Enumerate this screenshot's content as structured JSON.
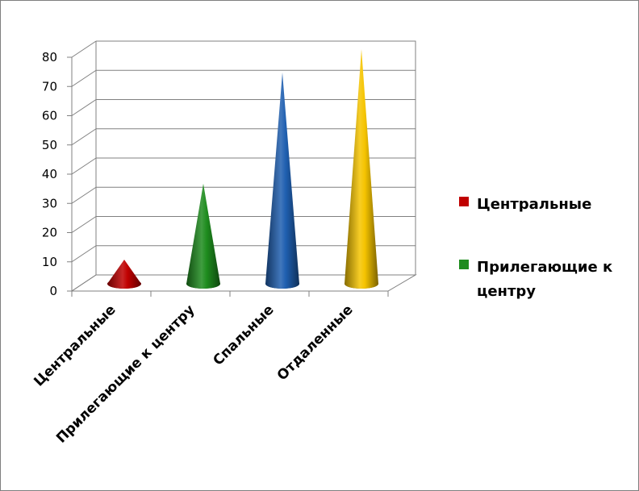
{
  "chart_data": {
    "type": "bar",
    "shape": "cone",
    "title": "",
    "xlabel": "",
    "ylabel": "",
    "ylim": [
      0,
      80
    ],
    "yticks": [
      0,
      10,
      20,
      30,
      40,
      50,
      60,
      70,
      80
    ],
    "categories": [
      "Центральные",
      "Прилегающие к центру",
      "Спальные",
      "Отдаленные"
    ],
    "values": [
      8,
      34,
      72,
      80
    ],
    "colors": [
      "#c00000",
      "#1e8c1e",
      "#1f5fb0",
      "#f5c400"
    ],
    "grid": true,
    "legend": {
      "position": "right",
      "entries": [
        {
          "label_lines": [
            "Центральные"
          ],
          "color": "#c00000"
        },
        {
          "label_lines": [
            "Прилегающие к",
            "центру"
          ],
          "color": "#1e8c1e"
        }
      ]
    }
  }
}
